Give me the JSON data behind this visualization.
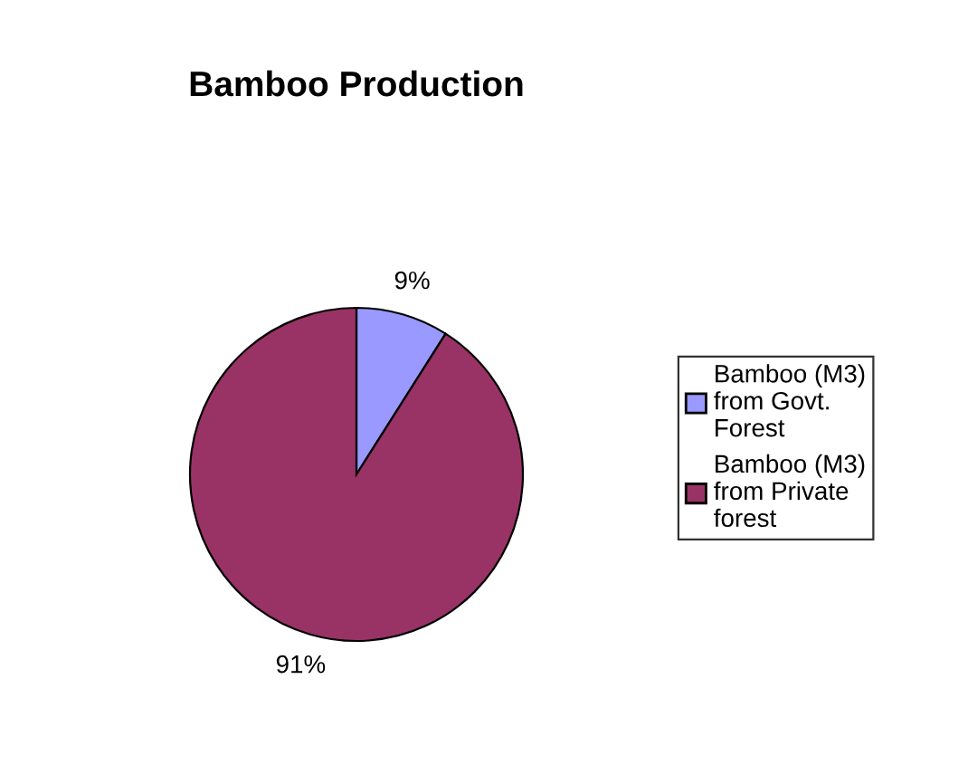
{
  "chart_data": {
    "type": "pie",
    "title": "Bamboo Production",
    "categories": [
      "Bamboo (M3) from Govt. Forest",
      "Bamboo (M3) from Private forest"
    ],
    "values": [
      9,
      91
    ],
    "colors": [
      "#9999ff",
      "#993366"
    ],
    "value_labels": [
      "9%",
      "91%"
    ],
    "legend": "right"
  }
}
